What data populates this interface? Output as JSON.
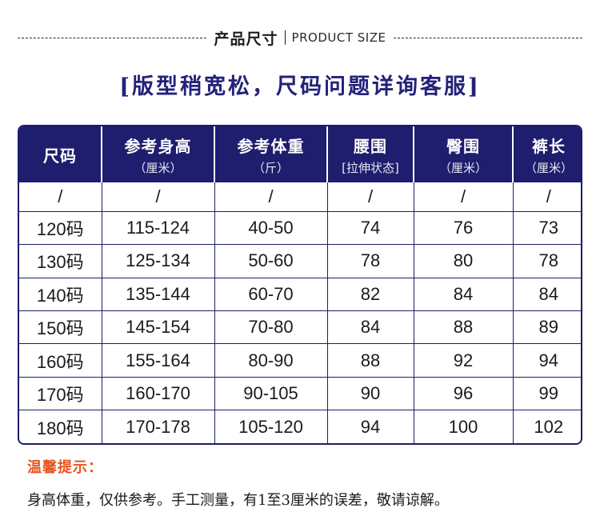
{
  "header": {
    "title_cn": "产品尺寸",
    "title_en": "PRODUCT SIZE"
  },
  "subtitle": "[版型稍宽松，尺码问题详询客服]",
  "table": {
    "columns": [
      {
        "name": "尺码",
        "sub": ""
      },
      {
        "name": "参考身高",
        "sub": "（厘米）"
      },
      {
        "name": "参考体重",
        "sub": "（斤）"
      },
      {
        "name": "腰围",
        "sub": "[拉伸状态]"
      },
      {
        "name": "臀围",
        "sub": "（厘米）"
      },
      {
        "name": "裤长",
        "sub": "（厘米）"
      }
    ],
    "rows": [
      [
        "/",
        "/",
        "/",
        "/",
        "/",
        "/"
      ],
      [
        "120码",
        "115-124",
        "40-50",
        "74",
        "76",
        "73"
      ],
      [
        "130码",
        "125-134",
        "50-60",
        "78",
        "80",
        "78"
      ],
      [
        "140码",
        "135-144",
        "60-70",
        "82",
        "84",
        "84"
      ],
      [
        "150码",
        "145-154",
        "70-80",
        "84",
        "88",
        "89"
      ],
      [
        "160码",
        "155-164",
        "80-90",
        "88",
        "92",
        "94"
      ],
      [
        "170码",
        "160-170",
        "90-105",
        "90",
        "96",
        "99"
      ],
      [
        "180码",
        "170-178",
        "105-120",
        "94",
        "100",
        "102"
      ]
    ]
  },
  "tips": {
    "title": "温馨提示：",
    "body": "身高体重，仅供参考。手工测量，有1至3厘米的误差，敬请谅解。"
  },
  "colors": {
    "navy": "#1e1d6e",
    "subtitle": "#23227a",
    "tip_title": "#e8541f"
  }
}
